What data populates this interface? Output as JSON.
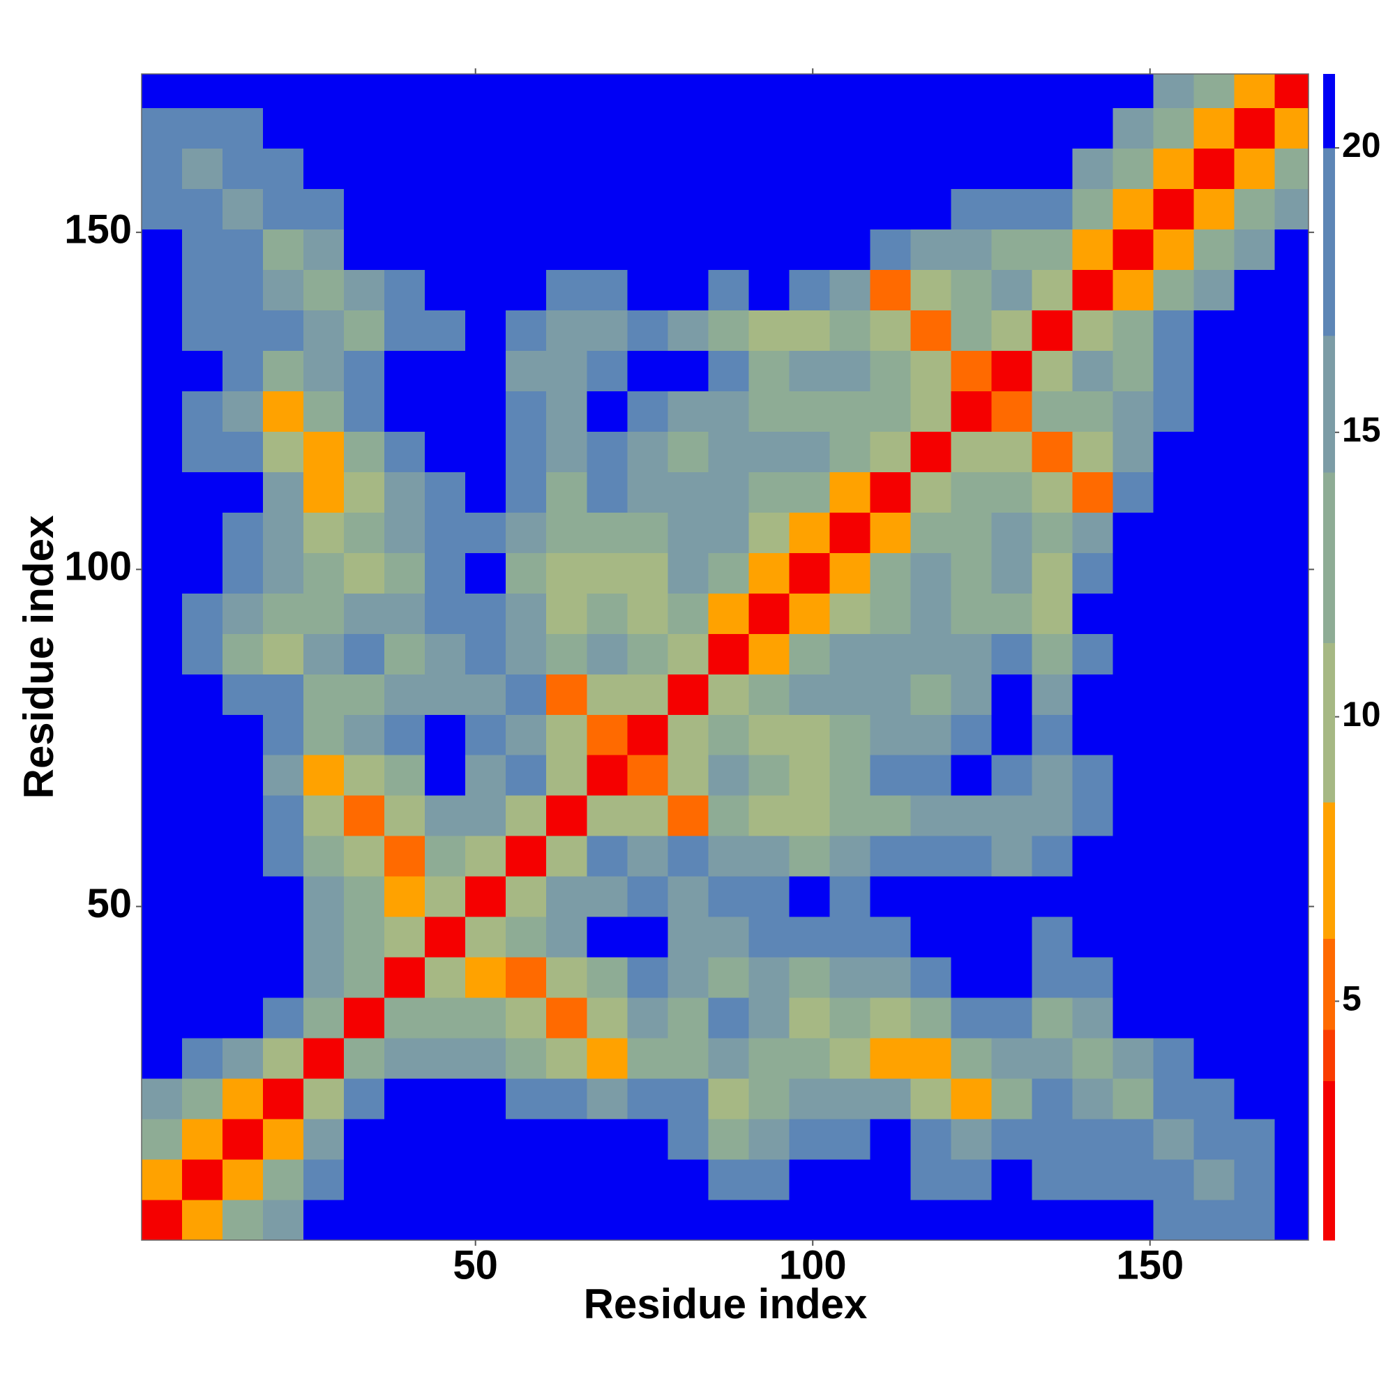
{
  "chart_data": {
    "type": "heatmap",
    "xlabel": "Residue index",
    "ylabel": "Residue index",
    "xlim": [
      0.5,
      173.5
    ],
    "ylim": [
      0.5,
      173.5
    ],
    "xticks": [
      50,
      100,
      150
    ],
    "yticks": [
      50,
      100,
      150
    ],
    "x": [
      3.5,
      9.5,
      15.5,
      21.5,
      27.5,
      33.5,
      39.5,
      45.5,
      51.5,
      57.5,
      63.5,
      69.5,
      75.5,
      81.5,
      87.5,
      93.5,
      99.5,
      105.5,
      111.5,
      117.5,
      123.5,
      129.5,
      135.5,
      141.5,
      147.5,
      153.5,
      159.5,
      165.5,
      171.5
    ],
    "y": [
      3.5,
      9.5,
      15.5,
      21.5,
      27.5,
      33.5,
      39.5,
      45.5,
      51.5,
      57.5,
      63.5,
      69.5,
      75.5,
      81.5,
      87.5,
      93.5,
      99.5,
      105.5,
      111.5,
      117.5,
      123.5,
      129.5,
      135.5,
      141.5,
      147.5,
      153.5,
      159.5,
      165.5,
      171.5
    ],
    "z": [
      [
        2,
        7,
        12,
        16,
        21,
        21,
        21,
        21,
        21,
        21,
        21,
        21,
        21,
        21,
        21,
        21,
        21,
        21,
        21,
        21,
        21,
        21,
        21,
        21,
        20,
        19,
        18,
        18,
        21
      ],
      [
        7,
        2,
        7,
        12,
        18,
        21,
        21,
        21,
        21,
        21,
        21,
        21,
        21,
        21,
        17,
        18,
        21,
        21,
        21,
        19,
        18,
        21,
        19,
        17,
        17,
        17,
        16,
        17,
        21
      ],
      [
        12,
        7,
        2,
        7,
        15,
        20,
        21,
        21,
        21,
        21,
        21,
        21,
        21,
        18,
        14,
        15,
        17,
        18,
        21,
        17,
        15,
        19,
        17,
        18,
        17,
        16,
        17,
        18,
        21
      ],
      [
        16,
        12,
        7,
        2,
        10,
        18,
        21,
        21,
        21,
        19,
        18,
        16,
        19,
        17,
        9,
        12,
        15,
        15,
        15,
        11,
        7,
        14,
        17,
        16,
        13,
        17,
        19,
        21,
        21
      ],
      [
        21,
        18,
        15,
        10,
        2,
        12,
        16,
        15,
        16,
        14,
        11,
        7,
        14,
        13,
        16,
        14,
        13,
        10,
        8,
        7,
        12,
        16,
        15,
        14,
        16,
        19,
        21,
        21,
        21
      ],
      [
        21,
        21,
        20,
        18,
        12,
        2,
        12,
        14,
        13,
        10,
        6,
        10,
        15,
        14,
        17,
        16,
        11,
        12,
        11,
        13,
        17,
        18,
        14,
        15,
        20,
        21,
        21,
        21,
        21
      ],
      [
        21,
        21,
        21,
        21,
        16,
        12,
        2,
        11,
        8,
        6,
        10,
        14,
        17,
        15,
        14,
        16,
        14,
        15,
        15,
        17,
        21,
        20,
        17,
        18,
        21,
        21,
        21,
        21,
        21
      ],
      [
        21,
        21,
        21,
        21,
        15,
        14,
        11,
        2,
        9,
        12,
        16,
        20,
        21,
        16,
        16,
        19,
        18,
        19,
        19,
        21,
        21,
        21,
        18,
        21,
        21,
        21,
        21,
        21,
        21
      ],
      [
        21,
        21,
        21,
        21,
        16,
        13,
        8,
        9,
        2,
        9,
        15,
        15,
        19,
        15,
        17,
        18,
        20,
        18,
        21,
        21,
        21,
        21,
        21,
        21,
        21,
        21,
        21,
        21,
        21
      ],
      [
        21,
        21,
        21,
        19,
        14,
        10,
        6,
        12,
        9,
        2,
        11,
        17,
        16,
        17,
        16,
        15,
        14,
        16,
        17,
        18,
        17,
        16,
        17,
        21,
        21,
        21,
        21,
        21,
        21
      ],
      [
        21,
        21,
        21,
        18,
        11,
        6,
        10,
        16,
        15,
        11,
        2,
        10,
        10,
        6,
        12,
        11,
        9,
        14,
        14,
        15,
        16,
        15,
        16,
        18,
        21,
        21,
        21,
        21,
        21
      ],
      [
        21,
        21,
        21,
        16,
        7,
        10,
        14,
        20,
        15,
        17,
        10,
        2,
        5,
        10,
        15,
        13,
        11,
        13,
        17,
        19,
        21,
        17,
        15,
        19,
        21,
        21,
        21,
        21,
        21
      ],
      [
        21,
        21,
        21,
        19,
        14,
        15,
        17,
        21,
        19,
        16,
        10,
        5,
        2,
        10,
        14,
        9,
        9,
        14,
        15,
        16,
        18,
        20,
        17,
        20,
        21,
        21,
        21,
        21,
        21
      ],
      [
        21,
        21,
        18,
        17,
        13,
        14,
        15,
        16,
        15,
        17,
        6,
        10,
        10,
        2,
        11,
        14,
        15,
        16,
        16,
        14,
        15,
        21,
        15,
        20,
        21,
        21,
        21,
        21,
        21
      ],
      [
        21,
        17,
        14,
        9,
        16,
        17,
        14,
        16,
        17,
        16,
        12,
        15,
        14,
        11,
        2,
        7,
        12,
        15,
        15,
        15,
        15,
        17,
        14,
        19,
        21,
        21,
        21,
        21,
        21
      ],
      [
        21,
        18,
        15,
        12,
        14,
        16,
        16,
        19,
        18,
        15,
        11,
        13,
        9,
        14,
        7,
        2,
        7,
        11,
        14,
        15,
        14,
        14,
        9,
        20,
        21,
        21,
        21,
        21,
        21
      ],
      [
        21,
        21,
        17,
        15,
        13,
        11,
        14,
        18,
        20,
        14,
        9,
        11,
        9,
        15,
        12,
        7,
        2,
        7,
        12,
        16,
        13,
        15,
        10,
        18,
        21,
        21,
        21,
        21,
        21
      ],
      [
        21,
        21,
        18,
        15,
        10,
        12,
        15,
        19,
        18,
        16,
        14,
        13,
        14,
        16,
        15,
        11,
        7,
        2,
        8,
        14,
        13,
        15,
        13,
        16,
        21,
        21,
        21,
        21,
        21
      ],
      [
        21,
        21,
        21,
        15,
        8,
        11,
        15,
        19,
        21,
        17,
        14,
        17,
        15,
        16,
        15,
        14,
        12,
        8,
        2,
        10,
        13,
        13,
        10,
        6,
        18,
        21,
        21,
        21,
        21
      ],
      [
        21,
        19,
        17,
        11,
        7,
        13,
        17,
        21,
        21,
        18,
        15,
        19,
        16,
        14,
        15,
        15,
        16,
        14,
        10,
        2,
        9,
        9,
        6,
        10,
        15,
        21,
        21,
        21,
        21
      ],
      [
        21,
        18,
        15,
        7,
        12,
        17,
        21,
        21,
        21,
        17,
        16,
        21,
        18,
        15,
        15,
        14,
        13,
        13,
        13,
        9,
        2,
        5,
        13,
        14,
        16,
        19,
        21,
        21,
        21
      ],
      [
        21,
        21,
        19,
        14,
        16,
        18,
        20,
        21,
        21,
        16,
        15,
        17,
        20,
        21,
        17,
        14,
        15,
        15,
        13,
        9,
        5,
        2,
        9,
        15,
        13,
        18,
        21,
        21,
        21
      ],
      [
        21,
        19,
        17,
        17,
        15,
        14,
        17,
        18,
        21,
        17,
        16,
        15,
        17,
        15,
        14,
        9,
        10,
        13,
        10,
        6,
        13,
        9,
        2,
        10,
        14,
        17,
        21,
        21,
        21
      ],
      [
        21,
        17,
        18,
        16,
        14,
        15,
        18,
        21,
        21,
        21,
        18,
        19,
        20,
        20,
        19,
        20,
        18,
        16,
        6,
        10,
        14,
        15,
        10,
        2,
        8,
        12,
        16,
        21,
        21
      ],
      [
        20,
        17,
        17,
        13,
        16,
        20,
        21,
        21,
        21,
        21,
        21,
        21,
        21,
        21,
        21,
        21,
        21,
        21,
        18,
        15,
        16,
        13,
        14,
        8,
        2,
        7,
        12,
        16,
        21
      ],
      [
        19,
        17,
        16,
        17,
        19,
        21,
        21,
        21,
        21,
        21,
        21,
        21,
        21,
        21,
        21,
        21,
        21,
        21,
        21,
        21,
        19,
        18,
        17,
        12,
        7,
        2,
        7,
        12,
        16
      ],
      [
        18,
        16,
        17,
        19,
        21,
        21,
        21,
        21,
        21,
        21,
        21,
        21,
        21,
        21,
        21,
        21,
        21,
        21,
        21,
        21,
        21,
        21,
        21,
        16,
        12,
        7,
        2,
        7,
        12
      ],
      [
        18,
        17,
        18,
        21,
        21,
        21,
        21,
        21,
        21,
        21,
        21,
        21,
        21,
        21,
        21,
        21,
        21,
        21,
        21,
        21,
        21,
        21,
        21,
        21,
        16,
        12,
        7,
        2,
        7
      ],
      [
        21,
        21,
        21,
        21,
        21,
        21,
        21,
        21,
        21,
        21,
        21,
        21,
        21,
        21,
        21,
        21,
        21,
        21,
        21,
        21,
        21,
        21,
        21,
        21,
        21,
        16,
        12,
        7,
        2
      ]
    ],
    "colorbar": {
      "lim": [
        0.8,
        21.3
      ],
      "ticks": [
        5,
        10,
        15,
        20
      ],
      "levels": [
        3.6,
        4.5,
        6.1,
        8.5,
        11.3,
        14.3,
        16.7,
        20
      ],
      "colors": [
        "#f50000",
        "#fa3c00",
        "#ff6a00",
        "#ffa200",
        "#a6b884",
        "#8eac95",
        "#7c9ca6",
        "#5d86b6",
        "#0000f5"
      ]
    }
  }
}
